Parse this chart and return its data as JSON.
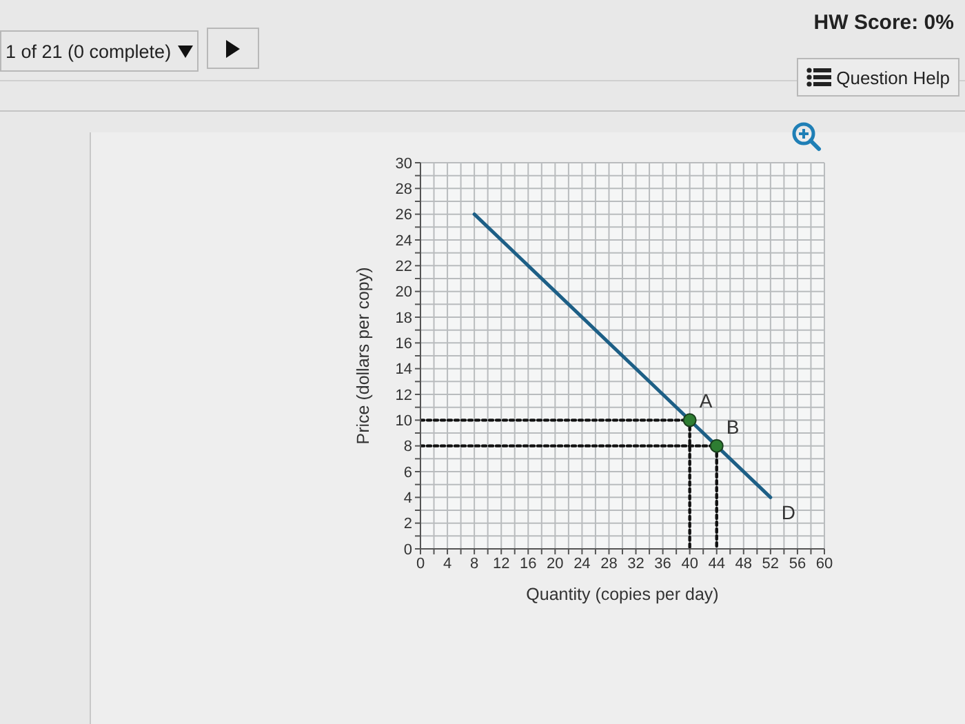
{
  "chart_data": {
    "type": "line",
    "xlabel": "Quantity (copies per day)",
    "ylabel": "Price (dollars per copy)",
    "annotations": [
      "1 of 21 (0 complete)",
      "HW Score: 0%",
      "Question Help",
      {
        "text": "A",
        "x": 40,
        "y": 10
      },
      {
        "text": "B",
        "x": 44,
        "y": 8
      }
    ],
    "xlim": [
      0,
      60
    ],
    "ylim": [
      0,
      30
    ],
    "xticks": [
      0,
      {
        "value": 2,
        "label": null
      },
      4,
      {
        "value": 6,
        "label": null
      },
      8,
      {
        "value": 10,
        "label": null
      },
      12,
      {
        "value": 14,
        "label": null
      },
      16,
      {
        "value": 18,
        "label": null
      },
      20,
      {
        "value": 22,
        "label": null
      },
      24,
      {
        "value": 26,
        "label": null
      },
      28,
      {
        "value": 30,
        "label": null
      },
      32,
      {
        "value": 34,
        "label": null
      },
      36,
      {
        "value": 38,
        "label": null
      },
      40,
      {
        "value": 42,
        "label": null
      },
      44,
      {
        "value": 46,
        "label": null
      },
      48,
      {
        "value": 50,
        "label": null
      },
      52,
      {
        "value": 54,
        "label": null
      },
      56,
      {
        "value": 58,
        "label": null
      },
      60
    ],
    "yticks": [
      0,
      {
        "value": 1,
        "label": null
      },
      2,
      {
        "value": 3,
        "label": null
      },
      4,
      {
        "value": 5,
        "label": null
      },
      6,
      {
        "value": 7,
        "label": null
      },
      8,
      {
        "value": 9,
        "label": null
      },
      10,
      {
        "value": 11,
        "label": null
      },
      12,
      {
        "value": 13,
        "label": null
      },
      14,
      {
        "value": 15,
        "label": null
      },
      16,
      {
        "value": 17,
        "label": null
      },
      18,
      {
        "value": 19,
        "label": null
      },
      20,
      {
        "value": 21,
        "label": null
      },
      22,
      {
        "value": 23,
        "label": null
      },
      24,
      {
        "value": 25,
        "label": null
      },
      26,
      {
        "value": 27,
        "label": null
      },
      28,
      {
        "value": 29,
        "label": null
      },
      30
    ],
    "grid": true,
    "legend": false,
    "marker": "none",
    "series": [
      {
        "name": "D",
        "color": "#1d5f86",
        "x": [
          8,
          52
        ],
        "values": [
          26,
          4
        ]
      },
      {
        "color": "#111111",
        "line_style": "dotted",
        "x": [
          0,
          40,
          40
        ],
        "values": [
          10,
          10,
          0
        ]
      },
      {
        "color": "#111111",
        "line_style": "dotted",
        "x": [
          0,
          44,
          44
        ],
        "values": [
          8,
          8,
          0
        ]
      },
      {
        "type": "scatter",
        "color": "#2e7d32",
        "marker": "circle",
        "x": [
          40,
          44
        ],
        "values": [
          10,
          8
        ]
      }
    ]
  }
}
